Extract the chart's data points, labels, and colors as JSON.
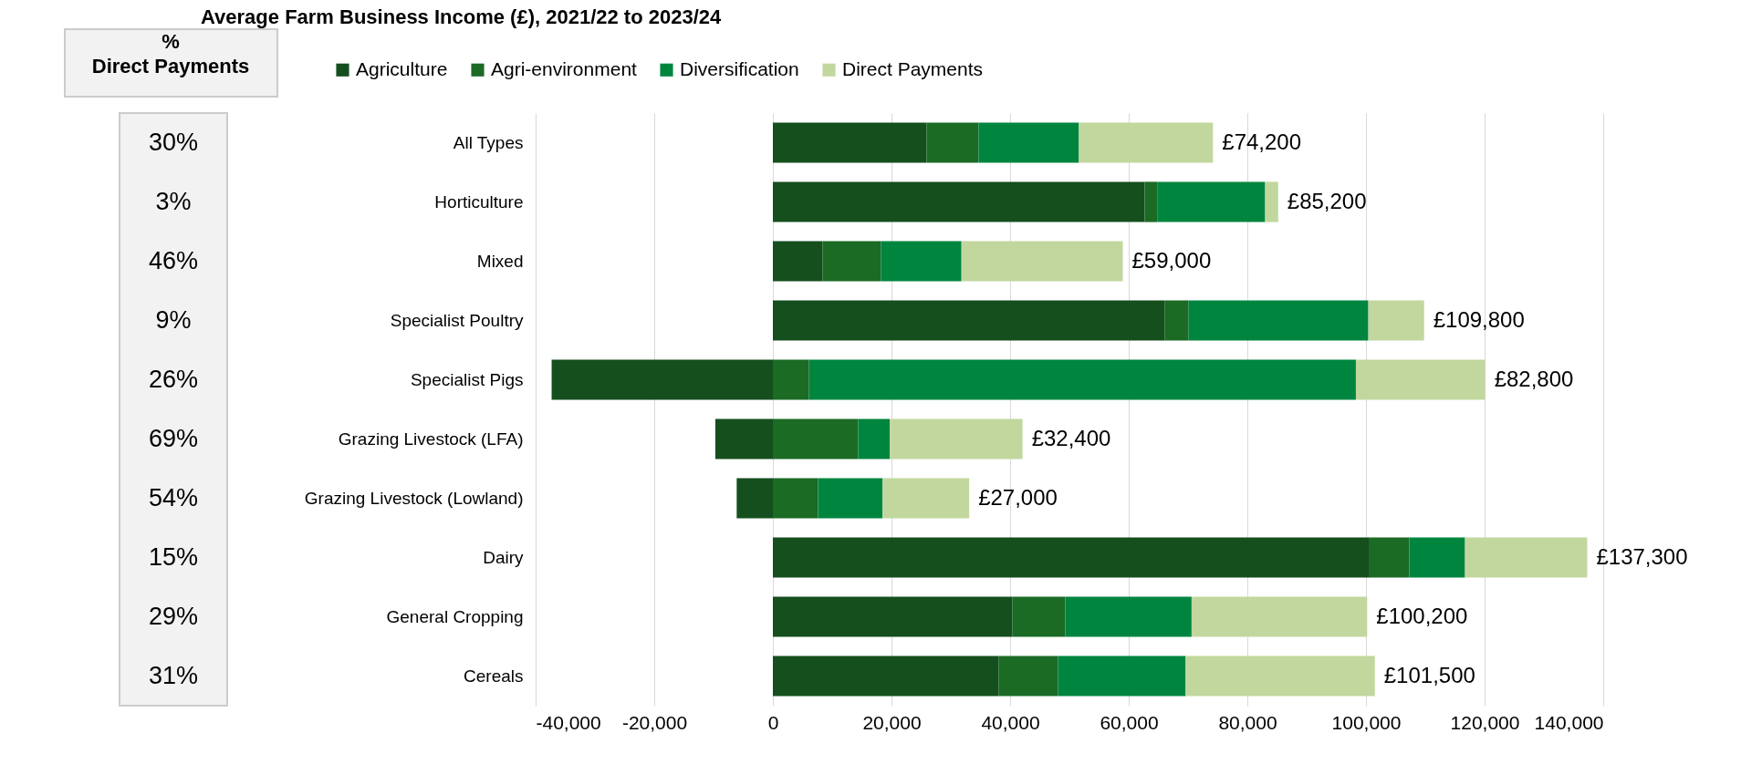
{
  "chart_data": {
    "type": "bar",
    "orientation": "horizontal",
    "stacked": true,
    "title": "Average Farm Business Income (£), 2021/22 to 2023/24",
    "categories": [
      "All Types",
      "Horticulture",
      "Mixed",
      "Specialist Poultry",
      "Specialist Pigs",
      "Grazing Livestock (LFA)",
      "Grazing Livestock (Lowland)",
      "Dairy",
      "General Cropping",
      "Cereals"
    ],
    "series": [
      {
        "name": "Agriculture",
        "color": "#154f1e",
        "values": [
          25900,
          62700,
          8400,
          66100,
          -37300,
          -9700,
          -6100,
          100600,
          40400,
          38100
        ]
      },
      {
        "name": "Agri-environment",
        "color": "#1b6b25",
        "values": [
          8800,
          2100,
          9800,
          4000,
          6100,
          14400,
          7600,
          6700,
          8900,
          10000
        ]
      },
      {
        "name": "Diversification",
        "color": "#00853f",
        "values": [
          16900,
          18200,
          13600,
          30300,
          92200,
          5300,
          10900,
          9400,
          21300,
          21500
        ]
      },
      {
        "name": "Direct Payments",
        "color": "#c2d79e",
        "values": [
          22600,
          2200,
          27200,
          9400,
          21800,
          22400,
          14600,
          20600,
          29600,
          31900
        ]
      }
    ],
    "totals": [
      "£74,200",
      "£85,200",
      "£59,000",
      "£109,800",
      "£82,800",
      "£32,400",
      "£27,000",
      "£137,300",
      "£100,200",
      "£101,500"
    ],
    "xlim": [
      -40000,
      140000
    ],
    "xticks": [
      {
        "value": -40000,
        "label": "-40,000"
      },
      {
        "value": -20000,
        "label": "-20,000"
      },
      0,
      {
        "value": 20000,
        "label": "20,000"
      },
      {
        "value": 40000,
        "label": "40,000"
      },
      {
        "value": 60000,
        "label": "60,000"
      },
      {
        "value": 80000,
        "label": "80,000"
      },
      {
        "value": 100000,
        "label": "100,000"
      },
      {
        "value": 120000,
        "label": "120,000"
      },
      {
        "value": 140000,
        "label": "140,000"
      }
    ],
    "grid": "x",
    "legend": "top",
    "annotations": [
      "% Direct Payments",
      "30%",
      "3%",
      "46%",
      "9%",
      "26%",
      "69%",
      "54%",
      "15%",
      "29%",
      "31%"
    ]
  }
}
